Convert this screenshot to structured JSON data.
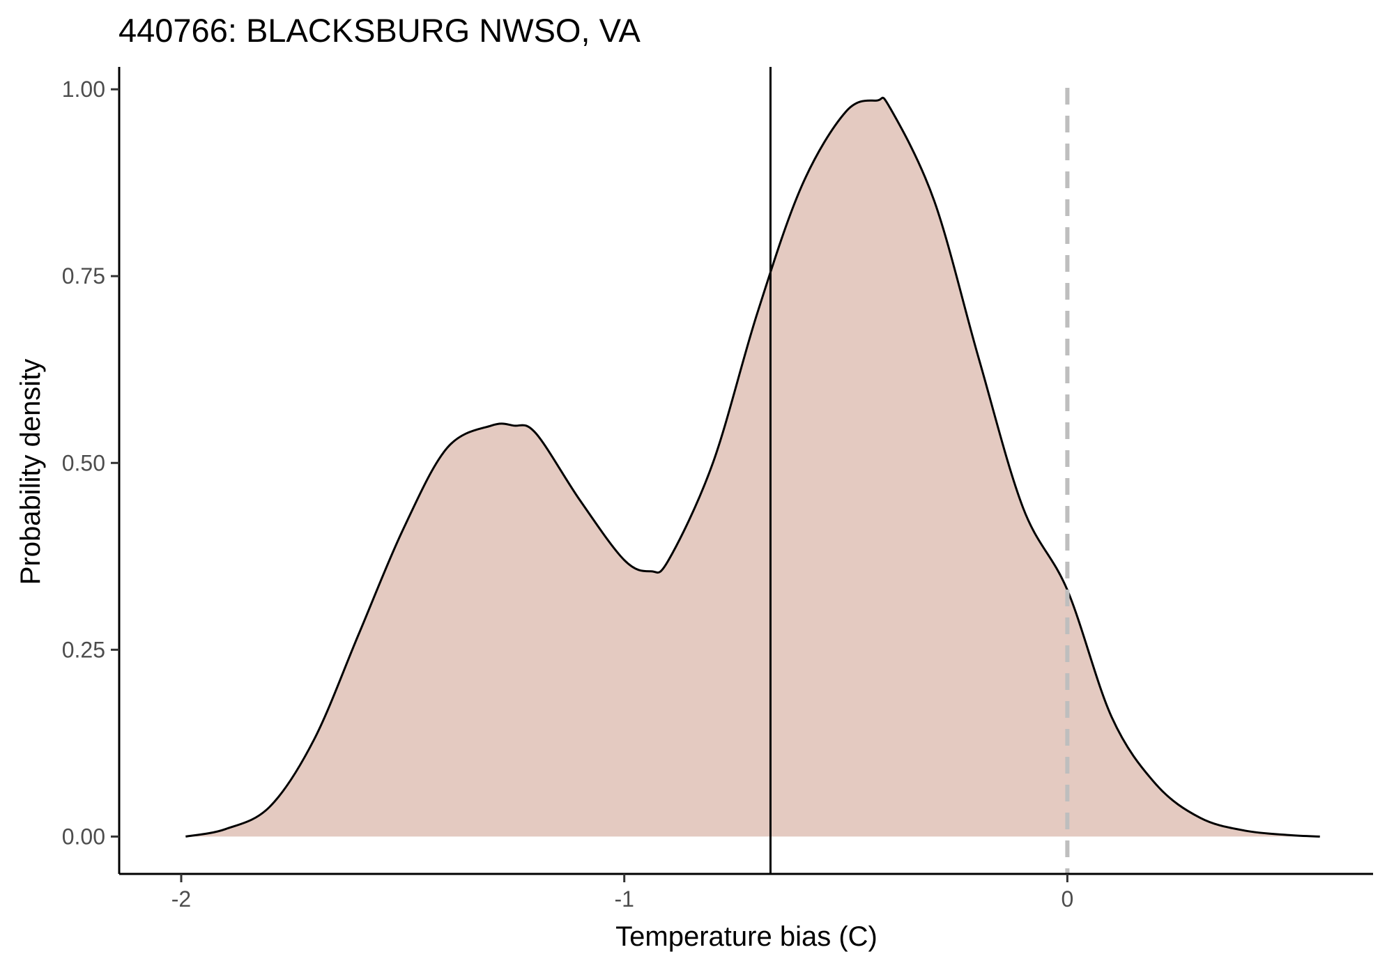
{
  "chart_data": {
    "type": "area",
    "title": "440766: BLACKSBURG NWSO, VA",
    "xlabel": "Temperature bias (C)",
    "ylabel": "Probability density",
    "xlim": [
      -2.14,
      0.69
    ],
    "ylim": [
      -0.05,
      1.03
    ],
    "xticks": [
      -2,
      -1,
      0
    ],
    "xtick_labels": [
      "-2",
      "-1",
      "0"
    ],
    "yticks": [
      0,
      0.25,
      0.5,
      0.75,
      1.0
    ],
    "ytick_labels": [
      "0.00",
      "0.25",
      "0.50",
      "0.75",
      "1.00"
    ],
    "grid": false,
    "legend": "none",
    "series": [
      {
        "x": [
          -1.99,
          -1.9,
          -1.8,
          -1.7,
          -1.6,
          -1.5,
          -1.4,
          -1.3,
          -1.25,
          -1.2,
          -1.1,
          -1.0,
          -0.94,
          -0.9,
          -0.8,
          -0.7,
          -0.6,
          -0.5,
          -0.43,
          -0.4,
          -0.3,
          -0.2,
          -0.1,
          0.0,
          0.1,
          0.2,
          0.3,
          0.4,
          0.5,
          0.57
        ],
        "y": [
          0.0,
          0.01,
          0.04,
          0.13,
          0.27,
          0.41,
          0.52,
          0.55,
          0.55,
          0.54,
          0.45,
          0.37,
          0.355,
          0.37,
          0.5,
          0.7,
          0.87,
          0.97,
          0.985,
          0.975,
          0.85,
          0.64,
          0.44,
          0.33,
          0.16,
          0.07,
          0.025,
          0.008,
          0.002,
          0.0
        ],
        "fill_color": "#e4cac1",
        "line_color": "#000000"
      }
    ],
    "reference_lines": [
      {
        "x": -0.67,
        "color": "#000000",
        "style": "solid"
      },
      {
        "x": 0,
        "color": "#bebebe",
        "style": "dashed"
      }
    ]
  }
}
